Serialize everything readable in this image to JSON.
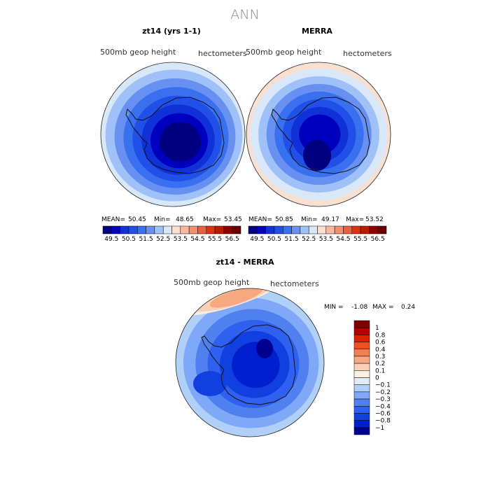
{
  "title": "ANN",
  "panels": [
    {
      "title": "zt14 (yrs 1-1)",
      "left_label": "500mb geop height",
      "right_label": "hectometers",
      "stats": {
        "mean_label": "MEAN=",
        "mean": "50.45",
        "min_label": "Min=",
        "min": "48.65",
        "max_label": "Max=",
        "max": "53.45"
      },
      "colorbar_labels": [
        "49.5",
        "50.5",
        "51.5",
        "52.5",
        "53.5",
        "54.5",
        "55.5",
        "56.5"
      ]
    },
    {
      "title": "MERRA",
      "left_label": "500mb geop height",
      "right_label": "hectometers",
      "stats": {
        "mean_label": "MEAN=",
        "mean": "50.85",
        "min_label": "Min=",
        "min": "49.17",
        "max_label": "Max=",
        "max": "53.52"
      },
      "colorbar_labels": [
        "49.5",
        "50.5",
        "51.5",
        "52.5",
        "53.5",
        "54.5",
        "55.5",
        "56.5"
      ]
    },
    {
      "title": "zt14 - MERRA",
      "left_label": "500mb geop height",
      "right_label": "hectometers",
      "stats": {
        "min_label": "MIN =",
        "min": "-1.08",
        "max_label": "MAX =",
        "max": "0.24"
      },
      "colorbar_labels": [
        "1",
        "0.8",
        "0.6",
        "0.4",
        "0.3",
        "0.2",
        "0.1",
        "0",
        "−0.1",
        "−0.2",
        "−0.3",
        "−0.4",
        "−0.6",
        "−0.8",
        "−1"
      ]
    }
  ],
  "chart_data": [
    {
      "type": "heatmap",
      "projection": "south-polar-stereographic",
      "title": "zt14 (yrs 1-1)",
      "variable": "500mb geop height",
      "units": "hectometers",
      "mean": 50.45,
      "min": 48.65,
      "max": 53.45,
      "levels": [
        49.5,
        50,
        50.5,
        51,
        51.5,
        52,
        52.5,
        53,
        53.5,
        54,
        54.5,
        55,
        55.5,
        56,
        56.5
      ],
      "colors": [
        "#000080",
        "#0000c0",
        "#1030d8",
        "#2050e8",
        "#3870f0",
        "#6890f0",
        "#a0c0f8",
        "#d8e8f8",
        "#f8e0d0",
        "#f8b8a0",
        "#f09070",
        "#e86040",
        "#e03010",
        "#c01800",
        "#900000",
        "#6a0000"
      ],
      "rings_outer_to_inner": [
        {
          "value": 52.2,
          "color": "#d8e8f8"
        },
        {
          "value": 51.8,
          "color": "#a0c0f8"
        },
        {
          "value": 51.3,
          "color": "#6890f0"
        },
        {
          "value": 50.9,
          "color": "#3870f0"
        },
        {
          "value": 50.4,
          "color": "#2050e8"
        },
        {
          "value": 49.9,
          "color": "#1030d8"
        },
        {
          "value": 49.4,
          "color": "#0000c0"
        },
        {
          "value": 48.9,
          "color": "#000080"
        }
      ]
    },
    {
      "type": "heatmap",
      "projection": "south-polar-stereographic",
      "title": "MERRA",
      "variable": "500mb geop height",
      "units": "hectometers",
      "mean": 50.85,
      "min": 49.17,
      "max": 53.52,
      "levels": [
        49.5,
        50,
        50.5,
        51,
        51.5,
        52,
        52.5,
        53,
        53.5,
        54,
        54.5,
        55,
        55.5,
        56,
        56.5
      ],
      "colors": [
        "#000080",
        "#0000c0",
        "#1030d8",
        "#2050e8",
        "#3870f0",
        "#6890f0",
        "#a0c0f8",
        "#d8e8f8",
        "#f8e0d0",
        "#f8b8a0",
        "#f09070",
        "#e86040",
        "#e03010",
        "#c01800",
        "#900000",
        "#6a0000"
      ],
      "rings_outer_to_inner": [
        {
          "value": 53.2,
          "color": "#f8e0d0"
        },
        {
          "value": 52.7,
          "color": "#d8e8f8"
        },
        {
          "value": 52.2,
          "color": "#a0c0f8"
        },
        {
          "value": 51.7,
          "color": "#6890f0"
        },
        {
          "value": 51.2,
          "color": "#3870f0"
        },
        {
          "value": 50.7,
          "color": "#2050e8"
        },
        {
          "value": 50.2,
          "color": "#1030d8"
        },
        {
          "value": 49.6,
          "color": "#0000c0"
        }
      ]
    },
    {
      "type": "heatmap",
      "projection": "south-polar-stereographic",
      "title": "zt14 - MERRA",
      "variable": "500mb geop height",
      "units": "hectometers",
      "min": -1.08,
      "max": 0.24,
      "levels": [
        -1,
        -0.8,
        -0.6,
        -0.4,
        -0.3,
        -0.2,
        -0.1,
        0,
        0.1,
        0.2,
        0.3,
        0.4,
        0.6,
        0.8,
        1
      ],
      "colors": [
        "#000090",
        "#0020d0",
        "#1040e0",
        "#3060f0",
        "#5080f0",
        "#80a8f8",
        "#b0d0f8",
        "#e0ecf8",
        "#f8f0e0",
        "#f8d0b8",
        "#f8a880",
        "#f08050",
        "#f05020",
        "#e02000",
        "#b00000",
        "#800000"
      ],
      "rings_outer_to_inner": [
        {
          "value": -0.15,
          "color": "#b0d0f8"
        },
        {
          "value": -0.25,
          "color": "#80a8f8"
        },
        {
          "value": -0.35,
          "color": "#5080f0"
        },
        {
          "value": -0.5,
          "color": "#3060f0"
        },
        {
          "value": -0.7,
          "color": "#1040e0"
        },
        {
          "value": -0.9,
          "color": "#0020d0"
        }
      ],
      "warm_region_values": [
        0.05,
        0.15,
        0.24
      ]
    }
  ]
}
